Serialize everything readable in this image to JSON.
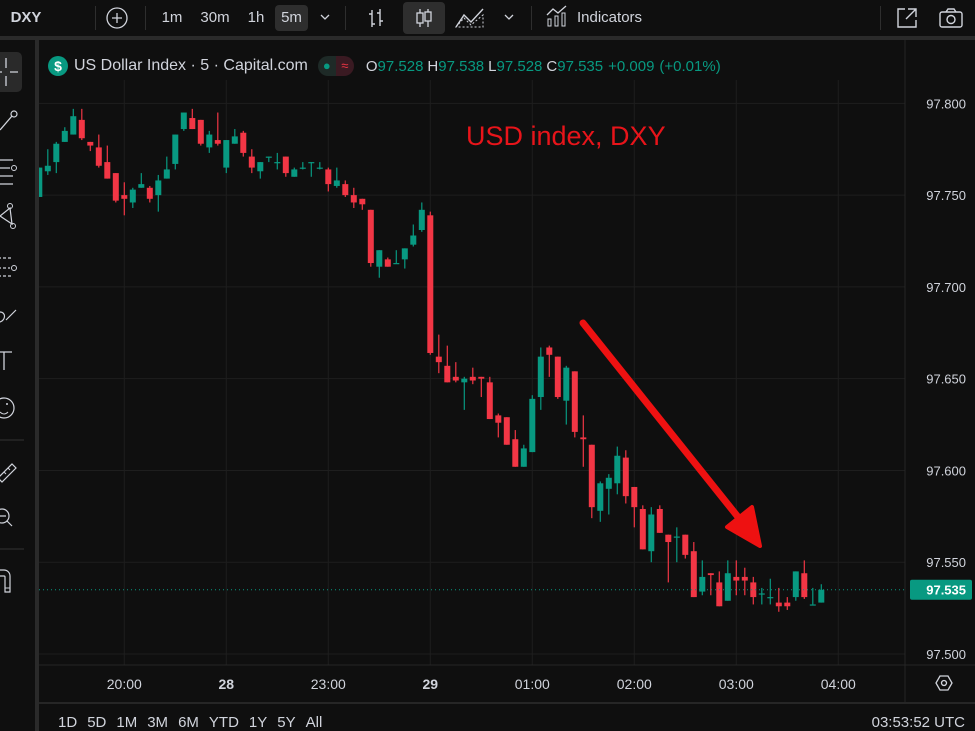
{
  "toolbar": {
    "symbol": "DXY",
    "intervals": [
      "1m",
      "30m",
      "1h",
      "5m"
    ],
    "active_interval": "5m",
    "indicators_label": "Indicators",
    "chart_type_active": "candles"
  },
  "legend": {
    "title": "US Dollar Index · 5 · Capital.com",
    "o_label": "O",
    "o": "97.528",
    "h_label": "H",
    "h": "97.538",
    "l_label": "L",
    "l": "97.528",
    "c_label": "C",
    "c": "97.535",
    "change": "+0.009",
    "change_pct": "(+0.01%)"
  },
  "left_tools": [
    "crosshair-icon",
    "trend-line-icon",
    "fib-lines-icon",
    "pattern-icon",
    "projection-icon",
    "brush-icon",
    "text-icon",
    "emoji-icon",
    "ruler-icon",
    "zoom-icon",
    "magnet-icon"
  ],
  "range_buttons": [
    "1D",
    "5D",
    "1M",
    "3M",
    "6M",
    "YTD",
    "1Y",
    "5Y",
    "All"
  ],
  "clock": "03:53:52 UTC",
  "colors": {
    "up": "#089981",
    "down": "#f23645",
    "background": "#0f0f0f",
    "grid": "#1e1e1e",
    "annotation": "#e8141a"
  },
  "chart_data": {
    "type": "candlestick",
    "interval": "5m",
    "ylim": [
      97.494,
      97.81
    ],
    "grid": true,
    "yticks": [
      "97.800",
      "97.750",
      "97.700",
      "97.650",
      "97.600",
      "97.550",
      "97.500"
    ],
    "xticks": [
      {
        "label": "20:00",
        "time": "20:00"
      },
      {
        "label": "28",
        "time": "22:00"
      },
      {
        "label": "23:00",
        "time": "23:00"
      },
      {
        "label": "29",
        "time": "00:00"
      },
      {
        "label": "01:00",
        "time": "01:00"
      },
      {
        "label": "02:00",
        "time": "02:00"
      },
      {
        "label": "03:00",
        "time": "03:00"
      },
      {
        "label": "04:00",
        "time": "04:00"
      }
    ],
    "current_price": "97.535",
    "annotation": "USD index, DXY",
    "candles_format": [
      "time",
      "open",
      "high",
      "low",
      "close"
    ],
    "candles": [
      [
        "19:10",
        97.749,
        97.765,
        97.749,
        97.765
      ],
      [
        "19:15",
        97.763,
        97.775,
        97.761,
        97.766
      ],
      [
        "19:20",
        97.768,
        97.779,
        97.762,
        97.778
      ],
      [
        "19:25",
        97.779,
        97.787,
        97.779,
        97.785
      ],
      [
        "19:30",
        97.783,
        97.797,
        97.783,
        97.793
      ],
      [
        "19:35",
        97.791,
        97.797,
        97.78,
        97.781
      ],
      [
        "19:40",
        97.779,
        97.779,
        97.774,
        97.777
      ],
      [
        "19:45",
        97.776,
        97.783,
        97.765,
        97.766
      ],
      [
        "19:50",
        97.768,
        97.777,
        97.759,
        97.759
      ],
      [
        "19:55",
        97.762,
        97.762,
        97.746,
        97.747
      ],
      [
        "20:00",
        97.75,
        97.757,
        97.739,
        97.748
      ],
      [
        "20:05",
        97.746,
        97.754,
        97.743,
        97.753
      ],
      [
        "20:10",
        97.754,
        97.762,
        97.754,
        97.756
      ],
      [
        "20:15",
        97.754,
        97.755,
        97.746,
        97.748
      ],
      [
        "20:20",
        97.75,
        97.761,
        97.741,
        97.758
      ],
      [
        "20:25",
        97.759,
        97.771,
        97.759,
        97.764
      ],
      [
        "20:30",
        97.767,
        97.783,
        97.764,
        97.783
      ],
      [
        "20:35",
        97.786,
        97.795,
        97.785,
        97.795
      ],
      [
        "20:40",
        97.792,
        97.797,
        97.786,
        97.786
      ],
      [
        "20:45",
        97.791,
        97.791,
        97.777,
        97.778
      ],
      [
        "20:50",
        97.776,
        97.785,
        97.773,
        97.783
      ],
      [
        "20:55",
        97.78,
        97.795,
        97.777,
        97.778
      ],
      [
        "22:00",
        97.765,
        97.78,
        97.762,
        97.78
      ],
      [
        "22:05",
        97.778,
        97.786,
        97.778,
        97.782
      ],
      [
        "22:10",
        97.784,
        97.785,
        97.771,
        97.773
      ],
      [
        "22:15",
        97.771,
        97.775,
        97.762,
        97.765
      ],
      [
        "22:20",
        97.763,
        97.768,
        97.759,
        97.768
      ],
      [
        "22:25",
        97.771,
        97.771,
        97.768,
        97.771
      ],
      [
        "22:30",
        97.768,
        97.773,
        97.764,
        97.768
      ],
      [
        "22:35",
        97.771,
        97.771,
        97.76,
        97.762
      ],
      [
        "22:40",
        97.76,
        97.765,
        97.76,
        97.764
      ],
      [
        "22:45",
        97.765,
        97.768,
        97.764,
        97.765
      ],
      [
        "22:50",
        97.768,
        97.768,
        97.76,
        97.768
      ],
      [
        "22:55",
        97.765,
        97.768,
        97.764,
        97.765
      ],
      [
        "23:00",
        97.764,
        97.765,
        97.752,
        97.756
      ],
      [
        "23:05",
        97.755,
        97.765,
        97.754,
        97.758
      ],
      [
        "23:10",
        97.756,
        97.758,
        97.749,
        97.75
      ],
      [
        "23:15",
        97.75,
        97.754,
        97.743,
        97.746
      ],
      [
        "23:20",
        97.748,
        97.748,
        97.742,
        97.745
      ],
      [
        "23:25",
        97.742,
        97.742,
        97.711,
        97.713
      ],
      [
        "23:30",
        97.711,
        97.72,
        97.705,
        97.72
      ],
      [
        "23:35",
        97.715,
        97.716,
        97.711,
        97.711
      ],
      [
        "23:40",
        97.713,
        97.72,
        97.713,
        97.713
      ],
      [
        "23:45",
        97.715,
        97.721,
        97.71,
        97.721
      ],
      [
        "23:50",
        97.723,
        97.734,
        97.722,
        97.728
      ],
      [
        "23:55",
        97.731,
        97.746,
        97.73,
        97.742
      ],
      [
        "00:00",
        97.739,
        97.741,
        97.663,
        97.664
      ],
      [
        "00:05",
        97.662,
        97.674,
        97.653,
        97.659
      ],
      [
        "00:10",
        97.657,
        97.668,
        97.648,
        97.648
      ],
      [
        "00:15",
        97.651,
        97.659,
        97.648,
        97.649
      ],
      [
        "00:20",
        97.648,
        97.651,
        97.633,
        97.65
      ],
      [
        "00:25",
        97.651,
        97.656,
        97.647,
        97.649
      ],
      [
        "00:30",
        97.651,
        97.651,
        97.64,
        97.65
      ],
      [
        "00:35",
        97.648,
        97.651,
        97.628,
        97.628
      ],
      [
        "00:40",
        97.63,
        97.631,
        97.618,
        97.626
      ],
      [
        "00:45",
        97.629,
        97.629,
        97.614,
        97.614
      ],
      [
        "00:50",
        97.617,
        97.622,
        97.602,
        97.602
      ],
      [
        "00:55",
        97.602,
        97.614,
        97.602,
        97.612
      ],
      [
        "01:00",
        97.61,
        97.641,
        97.61,
        97.639
      ],
      [
        "01:05",
        97.64,
        97.667,
        97.633,
        97.662
      ],
      [
        "01:10",
        97.667,
        97.668,
        97.651,
        97.663
      ],
      [
        "01:15",
        97.662,
        97.662,
        97.639,
        97.64
      ],
      [
        "01:20",
        97.638,
        97.657,
        97.625,
        97.656
      ],
      [
        "01:25",
        97.654,
        97.654,
        97.618,
        97.621
      ],
      [
        "01:30",
        97.618,
        97.63,
        97.602,
        97.617
      ],
      [
        "01:35",
        97.614,
        97.614,
        97.574,
        97.58
      ],
      [
        "01:40",
        97.578,
        97.594,
        97.572,
        97.593
      ],
      [
        "01:45",
        97.59,
        97.598,
        97.576,
        97.596
      ],
      [
        "01:50",
        97.593,
        97.613,
        97.587,
        97.608
      ],
      [
        "01:55",
        97.607,
        97.611,
        97.582,
        97.586
      ],
      [
        "02:00",
        97.591,
        97.591,
        97.569,
        97.58
      ],
      [
        "02:05",
        97.579,
        97.581,
        97.557,
        97.557
      ],
      [
        "02:10",
        97.556,
        97.58,
        97.55,
        97.576
      ],
      [
        "02:15",
        97.579,
        97.581,
        97.566,
        97.566
      ],
      [
        "02:20",
        97.565,
        97.565,
        97.539,
        97.561
      ],
      [
        "02:25",
        97.564,
        97.569,
        97.55,
        97.564
      ],
      [
        "02:30",
        97.565,
        97.565,
        97.552,
        97.554
      ],
      [
        "02:35",
        97.556,
        97.561,
        97.531,
        97.531
      ],
      [
        "02:40",
        97.534,
        97.551,
        97.532,
        97.542
      ],
      [
        "02:45",
        97.544,
        97.544,
        97.532,
        97.543
      ],
      [
        "02:50",
        97.539,
        97.545,
        97.526,
        97.526
      ],
      [
        "02:55",
        97.529,
        97.551,
        97.529,
        97.544
      ],
      [
        "03:00",
        97.542,
        97.551,
        97.532,
        97.54
      ],
      [
        "03:05",
        97.542,
        97.547,
        97.532,
        97.54
      ],
      [
        "03:10",
        97.539,
        97.542,
        97.527,
        97.531
      ],
      [
        "03:15",
        97.533,
        97.536,
        97.527,
        97.533
      ],
      [
        "03:20",
        97.531,
        97.541,
        97.527,
        97.531
      ],
      [
        "03:25",
        97.528,
        97.536,
        97.523,
        97.526
      ],
      [
        "03:30",
        97.528,
        97.531,
        97.524,
        97.526
      ],
      [
        "03:35",
        97.531,
        97.545,
        97.529,
        97.545
      ],
      [
        "03:40",
        97.544,
        97.551,
        97.53,
        97.531
      ],
      [
        "03:45",
        97.527,
        97.536,
        97.527,
        97.527
      ],
      [
        "03:50",
        97.528,
        97.538,
        97.528,
        97.535
      ]
    ]
  }
}
